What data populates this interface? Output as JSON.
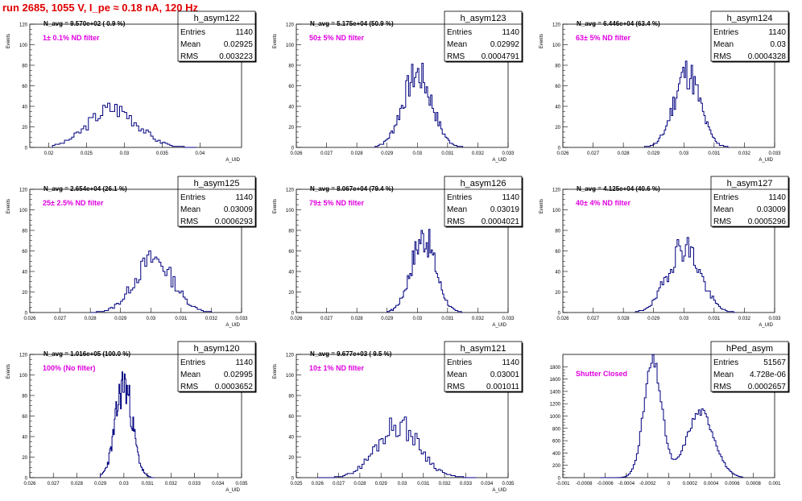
{
  "page_title": "run 2685,  1055 V, I_pe ≈ 0.18 nA, 120 Hz",
  "style": {
    "line_color": "#00007f",
    "title_color": "#e00000",
    "annotation_color": "#e000e0",
    "text_color": "#000000"
  },
  "stats_labels": {
    "entries": "Entries",
    "mean": "Mean",
    "rms": "RMS"
  },
  "chart_data": [
    {
      "type": "histogram",
      "name": "h_asym122",
      "navg": "N_avg = 9.570e+02 ( 0.9 %)",
      "annotation": "1± 0.1% ND filter",
      "entries": "1140",
      "mean": "0.02925",
      "rms": "0.003223",
      "ylabel": "Events",
      "xlabel": "A_UID",
      "xlim": [
        0.0175,
        0.0455
      ],
      "ylim": [
        0,
        120
      ],
      "xticks": [
        0.02,
        0.025,
        0.03,
        0.035,
        0.04
      ],
      "xtick_labels": [
        "0.02",
        "0.025",
        "0.03",
        "0.035",
        "0.04"
      ],
      "yticks": [
        0,
        20,
        40,
        60,
        80,
        100,
        120
      ],
      "peak": 0.0285,
      "sigma": 0.0032,
      "max": 43,
      "lo": 0.0205,
      "hi": 0.0395,
      "bins": 60,
      "seed": 3
    },
    {
      "type": "histogram",
      "name": "h_asym123",
      "navg": "N_avg = 5.175e+04 (50.9 %)",
      "annotation": "50± 5% ND filter",
      "entries": "1140",
      "mean": "0.02992",
      "rms": "0.0004791",
      "ylabel": "Events",
      "xlabel": "A_UID",
      "xlim": [
        0.026,
        0.033
      ],
      "ylim": [
        0,
        120
      ],
      "xticks": [
        0.026,
        0.027,
        0.028,
        0.029,
        0.03,
        0.031,
        0.032,
        0.033
      ],
      "xtick_labels": [
        "0.026",
        "0.027",
        "0.028",
        "0.029",
        "0.03",
        "0.031",
        "0.032",
        "0.033"
      ],
      "yticks": [
        0,
        20,
        40,
        60,
        80,
        100,
        120
      ],
      "peak": 0.03,
      "sigma": 0.00048,
      "max": 80,
      "lo": 0.0286,
      "hi": 0.0315,
      "bins": 60,
      "seed": 7
    },
    {
      "type": "histogram",
      "name": "h_asym124",
      "navg": "N_avg = 6.446e+04 (63.4 %)",
      "annotation": "63± 5% ND filter",
      "entries": "1140",
      "mean": "0.03",
      "rms": "0.0004328",
      "ylabel": "Events",
      "xlabel": "A_UID",
      "xlim": [
        0.026,
        0.033
      ],
      "ylim": [
        0,
        120
      ],
      "xticks": [
        0.026,
        0.027,
        0.028,
        0.029,
        0.03,
        0.031,
        0.032,
        0.033
      ],
      "xtick_labels": [
        "0.026",
        "0.027",
        "0.028",
        "0.029",
        "0.03",
        "0.031",
        "0.032",
        "0.033"
      ],
      "yticks": [
        0,
        20,
        40,
        60,
        80,
        100,
        120
      ],
      "peak": 0.0301,
      "sigma": 0.00043,
      "max": 82,
      "lo": 0.0287,
      "hi": 0.0315,
      "bins": 60,
      "seed": 11
    },
    {
      "type": "histogram",
      "name": "h_asym125",
      "navg": "N_avg = 2.654e+04 (26.1 %)",
      "annotation": "25± 2.5% ND filter",
      "entries": "1140",
      "mean": "0.03009",
      "rms": "0.0006293",
      "ylabel": "Events",
      "xlabel": "A_UID",
      "xlim": [
        0.026,
        0.033
      ],
      "ylim": [
        0,
        120
      ],
      "xticks": [
        0.026,
        0.027,
        0.028,
        0.029,
        0.03,
        0.031,
        0.032,
        0.033
      ],
      "xtick_labels": [
        "0.026",
        "0.027",
        "0.028",
        "0.029",
        "0.03",
        "0.031",
        "0.032",
        "0.033"
      ],
      "yticks": [
        0,
        20,
        40,
        60,
        80,
        100,
        120
      ],
      "peak": 0.0301,
      "sigma": 0.00063,
      "max": 58,
      "lo": 0.028,
      "hi": 0.032,
      "bins": 60,
      "seed": 13
    },
    {
      "type": "histogram",
      "name": "h_asym126",
      "navg": "N_avg = 8.067e+04 (79.4 %)",
      "annotation": "79± 5% ND filter",
      "entries": "1140",
      "mean": "0.03019",
      "rms": "0.0004021",
      "ylabel": "Events",
      "xlabel": "A_UID",
      "xlim": [
        0.026,
        0.033
      ],
      "ylim": [
        0,
        120
      ],
      "xticks": [
        0.026,
        0.027,
        0.028,
        0.029,
        0.03,
        0.031,
        0.032,
        0.033
      ],
      "xtick_labels": [
        "0.026",
        "0.027",
        "0.028",
        "0.029",
        "0.03",
        "0.031",
        "0.032",
        "0.033"
      ],
      "yticks": [
        0,
        20,
        40,
        60,
        80,
        100,
        120
      ],
      "peak": 0.0302,
      "sigma": 0.0004,
      "max": 83,
      "lo": 0.029,
      "hi": 0.0315,
      "bins": 60,
      "seed": 17
    },
    {
      "type": "histogram",
      "name": "h_asym127",
      "navg": "N_avg = 4.125e+04 (40.6 %)",
      "annotation": "40± 4% ND filter",
      "entries": "1140",
      "mean": "0.03009",
      "rms": "0.0005296",
      "ylabel": "Events",
      "xlabel": "A_UID",
      "xlim": [
        0.026,
        0.033
      ],
      "ylim": [
        0,
        120
      ],
      "xticks": [
        0.026,
        0.027,
        0.028,
        0.029,
        0.03,
        0.031,
        0.032,
        0.033
      ],
      "xtick_labels": [
        "0.026",
        "0.027",
        "0.028",
        "0.029",
        "0.03",
        "0.031",
        "0.032",
        "0.033"
      ],
      "yticks": [
        0,
        20,
        40,
        60,
        80,
        100,
        120
      ],
      "peak": 0.03,
      "sigma": 0.00053,
      "max": 73,
      "lo": 0.0284,
      "hi": 0.0317,
      "bins": 60,
      "seed": 19
    },
    {
      "type": "histogram",
      "name": "h_asym120",
      "navg": "N_avg = 1.016e+05 (100.0 %)",
      "annotation": "100% (No filter)",
      "entries": "1140",
      "mean": "0.02995",
      "rms": "0.0003652",
      "ylabel": "Events",
      "xlabel": "A_UID",
      "xlim": [
        0.026,
        0.035
      ],
      "ylim": [
        0,
        120
      ],
      "xticks": [
        0.026,
        0.027,
        0.028,
        0.029,
        0.03,
        0.031,
        0.032,
        0.033,
        0.034,
        0.035
      ],
      "xtick_labels": [
        "0.026",
        "0.027",
        "0.028",
        "0.029",
        "0.03",
        "0.031",
        "0.032",
        "0.033",
        "0.034",
        "0.035"
      ],
      "yticks": [
        0,
        20,
        40,
        60,
        80,
        100,
        120
      ],
      "peak": 0.03,
      "sigma": 0.00036,
      "max": 102,
      "lo": 0.029,
      "hi": 0.0313,
      "bins": 70,
      "seed": 23
    },
    {
      "type": "histogram",
      "name": "h_asym121",
      "navg": "N_avg = 9.677e+03 ( 9.5 %)",
      "annotation": "10± 1% ND filter",
      "entries": "1140",
      "mean": "0.03001",
      "rms": "0.001011",
      "ylabel": "Events",
      "xlabel": "A_UID",
      "xlim": [
        0.025,
        0.035
      ],
      "ylim": [
        0,
        120
      ],
      "xticks": [
        0.025,
        0.026,
        0.027,
        0.028,
        0.029,
        0.03,
        0.031,
        0.032,
        0.033,
        0.034,
        0.035
      ],
      "xtick_labels": [
        "0.025",
        "0.026",
        "0.027",
        "0.028",
        "0.029",
        "0.03",
        "0.031",
        "0.032",
        "0.033",
        "0.034",
        "0.035"
      ],
      "yticks": [
        0,
        20,
        40,
        60,
        80,
        100,
        120
      ],
      "peak": 0.0298,
      "sigma": 0.001,
      "max": 58,
      "lo": 0.026,
      "hi": 0.0335,
      "bins": 75,
      "seed": 29
    },
    {
      "type": "histogram",
      "name": "hPed_asym",
      "navg": "",
      "annotation": "Shutter Closed",
      "entries": "51567",
      "mean": "4.728e-06",
      "rms": "0.0002657",
      "ylabel": "",
      "xlabel": "",
      "xlim": [
        -0.001,
        0.001
      ],
      "ylim": [
        0,
        2000
      ],
      "xticks": [
        -0.001,
        -0.0008,
        -0.0006,
        -0.0004,
        -0.0002,
        0,
        0.0002,
        0.0004,
        0.0006,
        0.0008,
        0.001
      ],
      "xtick_labels": [
        "-0.001",
        "-0.0008",
        "-0.0006",
        "-0.0004",
        "-0.0002",
        "0",
        "0.0002",
        "0.0004",
        "0.0006",
        "0.0008",
        "0.001"
      ],
      "yticks": [
        0,
        200,
        400,
        600,
        800,
        1000,
        1200,
        1400,
        1600,
        1800
      ],
      "bimodal": [
        {
          "peak": -0.00015,
          "sigma": 8.5e-05,
          "max": 1870
        },
        {
          "peak": 0.0003,
          "sigma": 0.00013,
          "max": 1070
        }
      ],
      "lo": -0.00065,
      "hi": 0.0007,
      "bins": 90,
      "seed": 31
    }
  ]
}
